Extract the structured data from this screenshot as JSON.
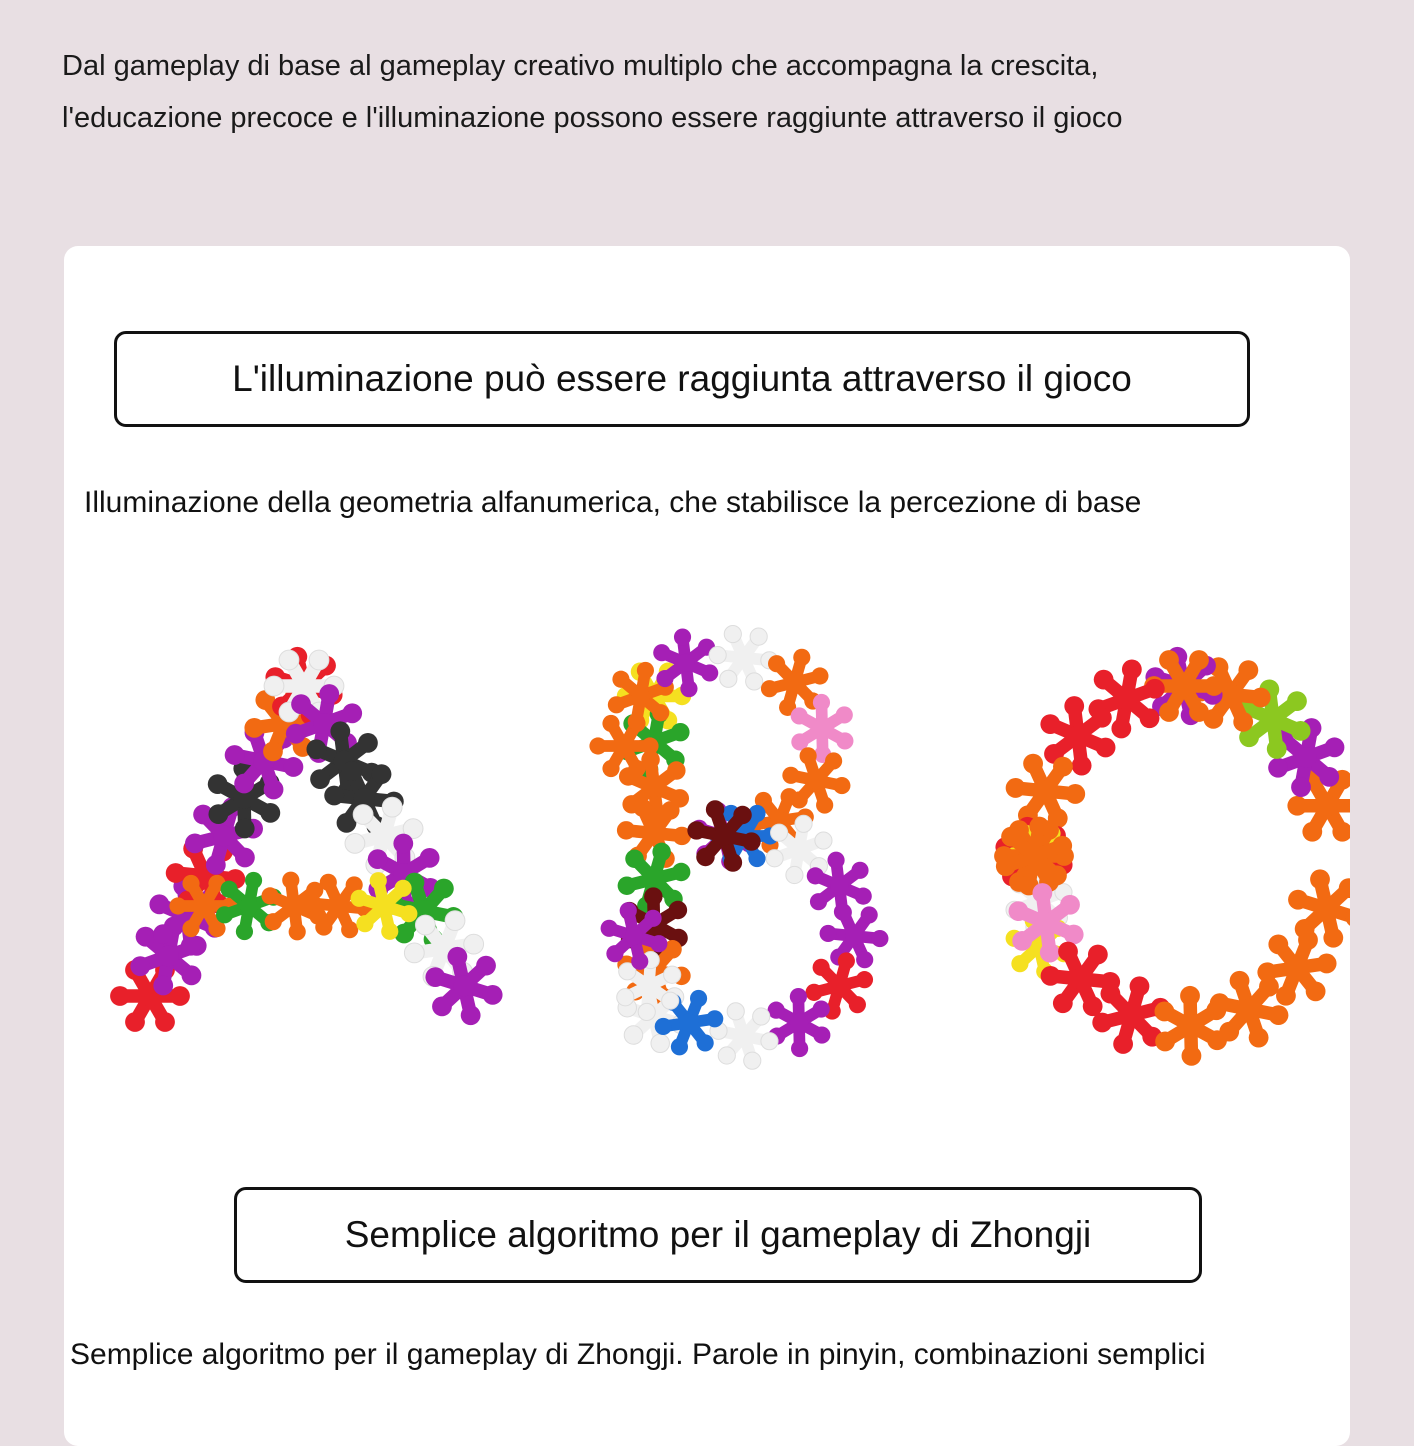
{
  "intro": {
    "line1": "Dal gameplay di base al gameplay creativo multiplo che accompagna la crescita,",
    "line2": "l'educazione precoce e l'illuminazione possono essere raggiunte attraverso il gioco"
  },
  "section1": {
    "heading": "L'illuminazione può essere raggiunta attraverso il gioco",
    "description": "Illuminazione della geometria alfanumerica, che stabilisce la percezione di base"
  },
  "image": {
    "letters": [
      "A",
      "B",
      "C"
    ],
    "piece_colors": [
      "#e8202a",
      "#a51fb5",
      "#f26a12",
      "#2aa52a",
      "#f5e020",
      "#f0f0f0",
      "#333333",
      "#1e6fd6",
      "#f08ac8",
      "#6a1010",
      "#8cc820"
    ]
  },
  "section2": {
    "heading": "Semplice algoritmo per il gameplay di Zhongji",
    "description": "Semplice algoritmo per il gameplay di Zhongji. Parole in pinyin, combinazioni semplici"
  }
}
